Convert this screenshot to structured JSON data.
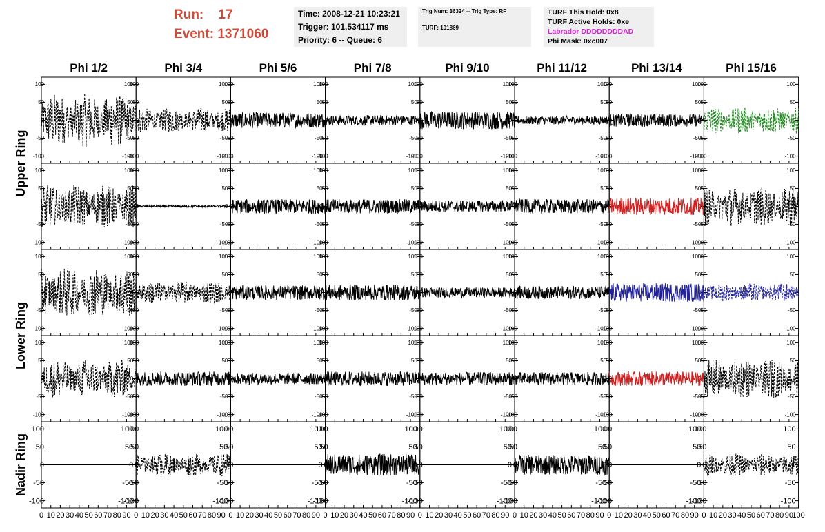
{
  "header": {
    "run_label": "Run:",
    "run_value": "17",
    "event_label": "Event:",
    "event_value": "1371060",
    "header_color": "#d14b3a",
    "time": "Time: 2008-12-21 10:23:21",
    "trigger": "Trigger: 101.534117 ms",
    "priority": "Priority: 6 -- Queue: 6",
    "trig_num": "Trig Num: 36324 -- Trig Type: RF",
    "turf": "TURF: 101869",
    "turf_this_hold": "TURF This Hold: 0x8",
    "turf_active_holds": "TURF Active Holds: 0xe",
    "labrador": "Labrador DDDDDDDDAD",
    "labrador_color": "#e020e0",
    "phi_mask": "Phi Mask: 0xc007"
  },
  "chart_data": {
    "type": "line",
    "columns": [
      "Phi 1/2",
      "Phi 3/4",
      "Phi 5/6",
      "Phi 7/8",
      "Phi 9/10",
      "Phi 11/12",
      "Phi 13/14",
      "Phi 15/16"
    ],
    "rows": [
      "Upper Ring",
      "Lower Ring",
      "Nadir Ring"
    ],
    "row_label_colors": {
      "Upper Ring": "#000000",
      "Lower Ring": "#000000",
      "Nadir Ring": "#000000"
    },
    "panel_rows": 5,
    "xlim": [
      0,
      100
    ],
    "ylim": [
      -120,
      120
    ],
    "x_ticks": [
      0,
      10,
      20,
      30,
      40,
      50,
      60,
      70,
      80,
      90,
      100
    ],
    "x_tick_labels": [
      "0",
      "10",
      "20",
      "30",
      "40",
      "50",
      "60",
      "70",
      "80",
      "90",
      "100"
    ],
    "y_ticks": [
      100,
      50,
      0,
      -50,
      -100
    ],
    "y_tick_labels": [
      "100",
      "50",
      "0",
      "-50",
      "-100"
    ],
    "trace_colors": {
      "black": "#000000",
      "green": "#228b22",
      "red": "#cc2222",
      "blue": "#22229a"
    },
    "panels": [
      [
        {
          "amp": 75,
          "style": "dashed",
          "color": "black"
        },
        {
          "amp": 35,
          "style": "dashed",
          "color": "black"
        },
        {
          "amp": 22,
          "style": "solid",
          "color": "black"
        },
        {
          "amp": 14,
          "style": "solid",
          "color": "black"
        },
        {
          "amp": 25,
          "style": "solid",
          "color": "black"
        },
        {
          "amp": 12,
          "style": "solid",
          "color": "black"
        },
        {
          "amp": 18,
          "style": "solid",
          "color": "black"
        },
        {
          "amp": 38,
          "style": "dashed",
          "color": "green"
        }
      ],
      [
        {
          "amp": 60,
          "style": "dashed",
          "color": "black"
        },
        {
          "amp": 3,
          "style": "solid",
          "color": "black"
        },
        {
          "amp": 20,
          "style": "solid",
          "color": "black"
        },
        {
          "amp": 20,
          "style": "solid",
          "color": "black"
        },
        {
          "amp": 16,
          "style": "solid",
          "color": "black"
        },
        {
          "amp": 20,
          "style": "solid",
          "color": "black"
        },
        {
          "amp": 24,
          "style": "solid",
          "color": "red"
        },
        {
          "amp": 55,
          "style": "dashed",
          "color": "black"
        }
      ],
      [
        {
          "amp": 70,
          "style": "dashed",
          "color": "black"
        },
        {
          "amp": 32,
          "style": "dashed",
          "color": "black"
        },
        {
          "amp": 20,
          "style": "solid",
          "color": "black"
        },
        {
          "amp": 22,
          "style": "solid",
          "color": "black"
        },
        {
          "amp": 14,
          "style": "solid",
          "color": "black"
        },
        {
          "amp": 18,
          "style": "solid",
          "color": "black"
        },
        {
          "amp": 26,
          "style": "solid",
          "color": "blue"
        },
        {
          "amp": 26,
          "style": "dashed",
          "color": "blue"
        }
      ],
      [
        {
          "amp": 55,
          "style": "dashed",
          "color": "black"
        },
        {
          "amp": 20,
          "style": "solid",
          "color": "black"
        },
        {
          "amp": 16,
          "style": "solid",
          "color": "black"
        },
        {
          "amp": 20,
          "style": "solid",
          "color": "black"
        },
        {
          "amp": 18,
          "style": "solid",
          "color": "black"
        },
        {
          "amp": 18,
          "style": "solid",
          "color": "black"
        },
        {
          "amp": 20,
          "style": "solid",
          "color": "red"
        },
        {
          "amp": 55,
          "style": "dashed",
          "color": "black"
        }
      ],
      [
        {
          "amp": 0,
          "style": "solid",
          "color": "black"
        },
        {
          "amp": 32,
          "style": "dashed",
          "color": "black"
        },
        {
          "amp": 0,
          "style": "solid",
          "color": "black"
        },
        {
          "amp": 30,
          "style": "solid",
          "color": "black"
        },
        {
          "amp": 0,
          "style": "solid",
          "color": "black"
        },
        {
          "amp": 28,
          "style": "solid",
          "color": "black"
        },
        {
          "amp": 0,
          "style": "solid",
          "color": "black"
        },
        {
          "amp": 32,
          "style": "dashed",
          "color": "black"
        }
      ]
    ]
  }
}
